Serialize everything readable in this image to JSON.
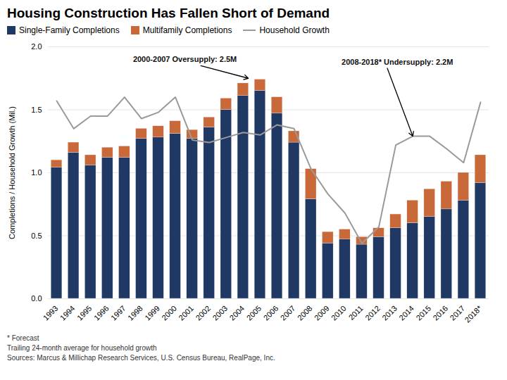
{
  "chart_data": {
    "type": "bar",
    "title": "Housing Construction Has Fallen Short of Demand",
    "ylabel": "Completions / Household Growth (Mil.)",
    "categories": [
      "1993",
      "1994",
      "1995",
      "1996",
      "1997",
      "1998",
      "1999",
      "2000",
      "2001",
      "2002",
      "2003",
      "2004",
      "2005",
      "2006",
      "2007",
      "2008",
      "2009",
      "2010",
      "2011",
      "2012",
      "2013",
      "2014",
      "2015",
      "2016",
      "2017",
      "2018*"
    ],
    "series": [
      {
        "name": "Single-Family Completions",
        "type": "bar",
        "color": "#1F3864",
        "values": [
          1.04,
          1.16,
          1.06,
          1.12,
          1.12,
          1.27,
          1.28,
          1.31,
          1.27,
          1.36,
          1.5,
          1.61,
          1.65,
          1.47,
          1.24,
          0.79,
          0.44,
          0.47,
          0.43,
          0.49,
          0.56,
          0.6,
          0.65,
          0.71,
          0.78,
          0.92
        ]
      },
      {
        "name": "Multifamily Completions",
        "type": "bar",
        "color": "#C9693A",
        "values": [
          0.06,
          0.08,
          0.08,
          0.08,
          0.09,
          0.08,
          0.09,
          0.1,
          0.07,
          0.08,
          0.09,
          0.1,
          0.09,
          0.13,
          0.09,
          0.24,
          0.09,
          0.08,
          0.06,
          0.07,
          0.11,
          0.18,
          0.22,
          0.22,
          0.22,
          0.22
        ]
      },
      {
        "name": "Household Growth",
        "type": "line",
        "color": "#9a9a9a",
        "values": [
          1.57,
          1.35,
          1.45,
          1.45,
          1.6,
          1.43,
          1.48,
          1.6,
          1.26,
          1.24,
          1.28,
          1.32,
          1.3,
          1.38,
          1.35,
          1.03,
          0.83,
          0.68,
          0.44,
          0.57,
          1.22,
          1.29,
          1.29,
          1.19,
          1.08,
          1.56
        ]
      }
    ],
    "stacked": true,
    "ylim": [
      0,
      2.0
    ],
    "yticks": [
      {
        "value": 0.0,
        "label": "0.0"
      },
      0.5,
      {
        "value": 1.0,
        "label": "1.0"
      },
      1.5,
      {
        "value": 2.0,
        "label": "2.0"
      }
    ],
    "grid": true,
    "legend": "top-left",
    "annotations": [
      "2000-2007 Oversupply: 2.5M",
      "2008-2018* Undersupply: 2.2M"
    ],
    "caption": "* Forecast\nTrailing 24-month average for household growth\nSources: Marcus & Millichap Research Services, U.S. Census Bureau, RealPage, Inc."
  }
}
